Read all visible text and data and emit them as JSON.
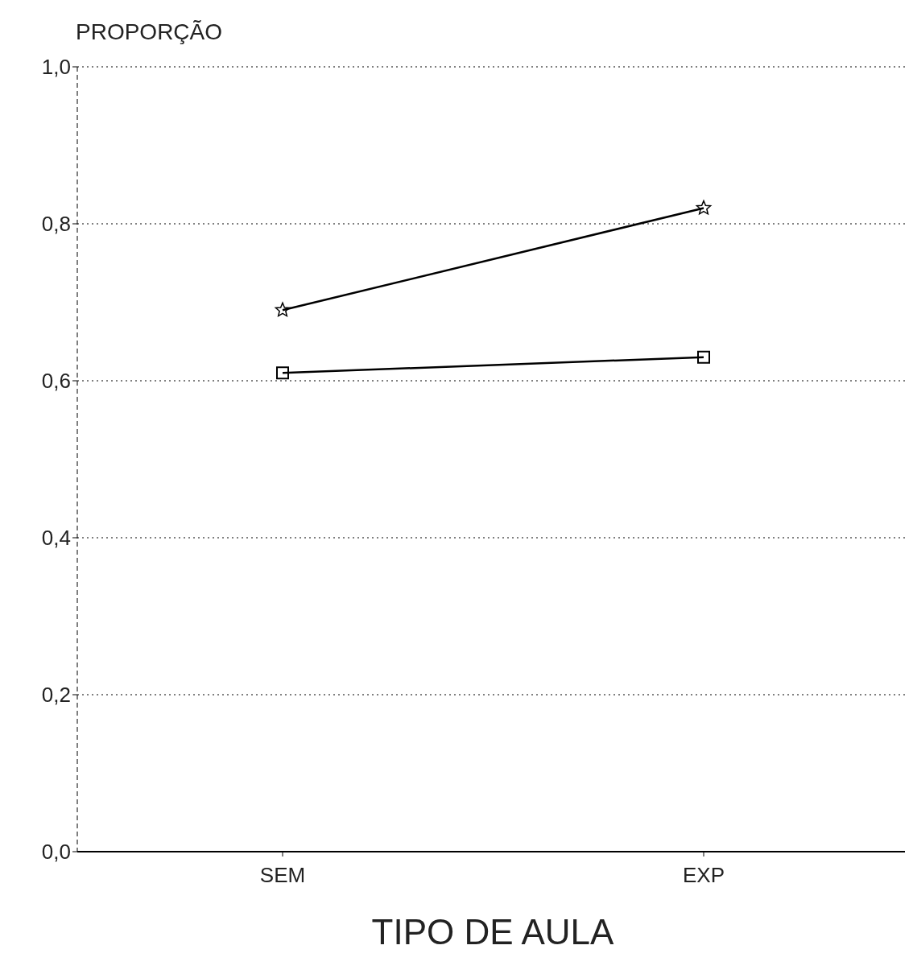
{
  "chart_data": {
    "type": "line",
    "ylabel": "PROPORÇÃO",
    "xlabel": "TIPO DE AULA",
    "categories": [
      "SEM",
      "EXP"
    ],
    "series": [
      {
        "color": "#000000",
        "values": [
          0.69,
          0.82
        ],
        "marker": "star"
      },
      {
        "color": "#000000",
        "values": [
          0.61,
          0.63
        ],
        "marker": "square"
      }
    ],
    "ylim": [
      0,
      1
    ],
    "yticks": [
      {
        "value": 0,
        "label": "0,0"
      },
      {
        "value": 0.2,
        "label": "0,2"
      },
      {
        "value": 0.4,
        "label": "0,4"
      },
      {
        "value": 0.6,
        "label": "0,6"
      },
      {
        "value": 0.8,
        "label": "0,8"
      },
      {
        "value": 1,
        "label": "1,0"
      }
    ],
    "grid": "y",
    "line_style": "solid"
  }
}
